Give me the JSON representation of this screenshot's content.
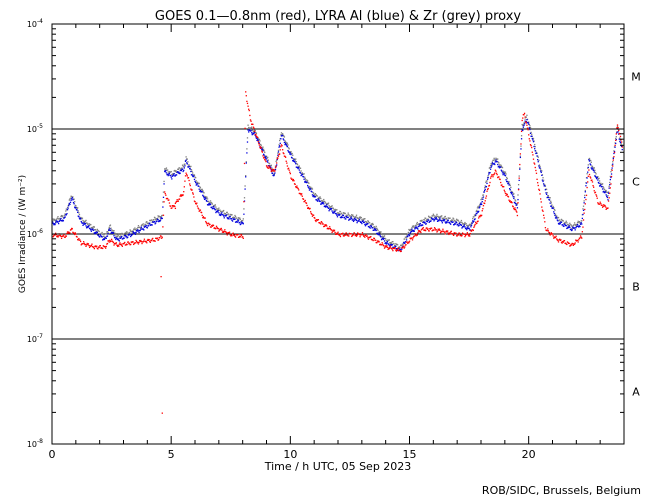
{
  "chart_data": {
    "type": "scatter",
    "title": "GOES 0.1—0.8nm (red), LYRA Al (blue) & Zr (grey) proxy",
    "xlabel": "Time / h UTC, 05 Sep 2023",
    "ylabel": "GOES Irradiance / (W m⁻²)",
    "xlim": [
      0,
      24
    ],
    "ylim_log10": [
      -8,
      -4
    ],
    "x_ticks": [
      0,
      5,
      10,
      15,
      20
    ],
    "x_tick_labels": [
      "0",
      "5",
      "10",
      "15",
      "20"
    ],
    "y_ticks_log10": [
      -8,
      -7,
      -6,
      -5,
      -4
    ],
    "y_tick_bases": [
      "10",
      "10",
      "10",
      "10",
      "10"
    ],
    "y_tick_exponents": [
      "-8",
      "-7",
      "-6",
      "-5",
      "-4"
    ],
    "class_lines_log10": [
      -7,
      -6,
      -5
    ],
    "class_labels": [
      {
        "label": "A",
        "log10": -7.5
      },
      {
        "label": "B",
        "log10": -6.5
      },
      {
        "label": "C",
        "log10": -5.5
      },
      {
        "label": "M",
        "log10": -4.5
      }
    ],
    "credit": "ROB/SIDC, Brussels, Belgium",
    "series": [
      {
        "name": "LYRA Zr proxy",
        "color": "#808080",
        "offset": 0.03,
        "anchors": [
          [
            0.0,
            -5.9
          ],
          [
            0.5,
            -5.85
          ],
          [
            0.8,
            -5.65
          ],
          [
            1.2,
            -5.88
          ],
          [
            1.8,
            -5.98
          ],
          [
            2.2,
            -6.05
          ],
          [
            2.4,
            -5.95
          ],
          [
            2.7,
            -6.05
          ],
          [
            3.3,
            -6.0
          ],
          [
            4.3,
            -5.88
          ],
          [
            4.6,
            -5.85
          ],
          [
            4.7,
            -5.4
          ],
          [
            5.0,
            -5.45
          ],
          [
            5.5,
            -5.38
          ],
          [
            5.6,
            -5.3
          ],
          [
            6.0,
            -5.5
          ],
          [
            6.5,
            -5.7
          ],
          [
            7.0,
            -5.8
          ],
          [
            7.5,
            -5.85
          ],
          [
            8.0,
            -5.9
          ],
          [
            8.2,
            -5.0
          ],
          [
            8.5,
            -5.05
          ],
          [
            9.0,
            -5.3
          ],
          [
            9.3,
            -5.45
          ],
          [
            9.6,
            -5.05
          ],
          [
            10.0,
            -5.25
          ],
          [
            11.0,
            -5.65
          ],
          [
            12.0,
            -5.82
          ],
          [
            13.0,
            -5.88
          ],
          [
            13.5,
            -5.95
          ],
          [
            14.0,
            -6.08
          ],
          [
            14.6,
            -6.15
          ],
          [
            15.0,
            -5.98
          ],
          [
            15.5,
            -5.9
          ],
          [
            16.0,
            -5.85
          ],
          [
            17.0,
            -5.9
          ],
          [
            17.5,
            -5.95
          ],
          [
            18.0,
            -5.7
          ],
          [
            18.4,
            -5.35
          ],
          [
            18.6,
            -5.3
          ],
          [
            19.0,
            -5.45
          ],
          [
            19.5,
            -5.75
          ],
          [
            19.7,
            -5.0
          ],
          [
            19.9,
            -4.9
          ],
          [
            20.2,
            -5.15
          ],
          [
            20.7,
            -5.6
          ],
          [
            21.2,
            -5.88
          ],
          [
            21.8,
            -5.95
          ],
          [
            22.2,
            -5.9
          ],
          [
            22.5,
            -5.3
          ],
          [
            22.9,
            -5.5
          ],
          [
            23.3,
            -5.65
          ],
          [
            23.7,
            -5.0
          ],
          [
            23.9,
            -5.2
          ]
        ]
      },
      {
        "name": "LYRA Al proxy",
        "color": "#0000dd",
        "offset": 0.0,
        "anchors": [
          [
            0.0,
            -5.9
          ],
          [
            0.5,
            -5.85
          ],
          [
            0.8,
            -5.65
          ],
          [
            1.2,
            -5.88
          ],
          [
            1.8,
            -5.98
          ],
          [
            2.2,
            -6.05
          ],
          [
            2.4,
            -5.95
          ],
          [
            2.7,
            -6.05
          ],
          [
            3.3,
            -6.0
          ],
          [
            4.3,
            -5.88
          ],
          [
            4.6,
            -5.85
          ],
          [
            4.7,
            -5.4
          ],
          [
            5.0,
            -5.45
          ],
          [
            5.5,
            -5.38
          ],
          [
            5.6,
            -5.3
          ],
          [
            6.0,
            -5.5
          ],
          [
            6.5,
            -5.7
          ],
          [
            7.0,
            -5.8
          ],
          [
            7.5,
            -5.85
          ],
          [
            8.0,
            -5.9
          ],
          [
            8.2,
            -5.0
          ],
          [
            8.5,
            -5.05
          ],
          [
            9.0,
            -5.3
          ],
          [
            9.3,
            -5.45
          ],
          [
            9.6,
            -5.05
          ],
          [
            10.0,
            -5.25
          ],
          [
            11.0,
            -5.65
          ],
          [
            12.0,
            -5.82
          ],
          [
            13.0,
            -5.88
          ],
          [
            13.5,
            -5.95
          ],
          [
            14.0,
            -6.08
          ],
          [
            14.6,
            -6.15
          ],
          [
            15.0,
            -5.98
          ],
          [
            15.5,
            -5.9
          ],
          [
            16.0,
            -5.85
          ],
          [
            17.0,
            -5.9
          ],
          [
            17.5,
            -5.95
          ],
          [
            18.0,
            -5.7
          ],
          [
            18.4,
            -5.35
          ],
          [
            18.6,
            -5.3
          ],
          [
            19.0,
            -5.45
          ],
          [
            19.5,
            -5.75
          ],
          [
            19.7,
            -5.0
          ],
          [
            19.9,
            -4.9
          ],
          [
            20.2,
            -5.15
          ],
          [
            20.7,
            -5.6
          ],
          [
            21.2,
            -5.88
          ],
          [
            21.8,
            -5.95
          ],
          [
            22.2,
            -5.9
          ],
          [
            22.5,
            -5.3
          ],
          [
            22.9,
            -5.5
          ],
          [
            23.3,
            -5.65
          ],
          [
            23.7,
            -5.0
          ],
          [
            23.9,
            -5.2
          ]
        ]
      },
      {
        "name": "GOES 0.1-0.8nm",
        "color": "#ff0000",
        "offset": 0.0,
        "anchors": [
          [
            0.0,
            -6.0
          ],
          [
            0.5,
            -6.02
          ],
          [
            0.8,
            -5.95
          ],
          [
            1.2,
            -6.08
          ],
          [
            1.8,
            -6.12
          ],
          [
            2.2,
            -6.12
          ],
          [
            2.4,
            -6.05
          ],
          [
            2.7,
            -6.1
          ],
          [
            3.3,
            -6.08
          ],
          [
            4.3,
            -6.05
          ],
          [
            4.6,
            -6.02
          ],
          [
            4.7,
            -5.6
          ],
          [
            5.0,
            -5.75
          ],
          [
            5.5,
            -5.6
          ],
          [
            5.6,
            -5.4
          ],
          [
            6.0,
            -5.7
          ],
          [
            6.5,
            -5.9
          ],
          [
            7.0,
            -5.95
          ],
          [
            7.5,
            -6.0
          ],
          [
            8.0,
            -6.02
          ],
          [
            8.1,
            -4.65
          ],
          [
            8.3,
            -4.9
          ],
          [
            9.0,
            -5.35
          ],
          [
            9.3,
            -5.4
          ],
          [
            9.6,
            -5.15
          ],
          [
            10.0,
            -5.45
          ],
          [
            11.0,
            -5.85
          ],
          [
            12.0,
            -6.0
          ],
          [
            13.0,
            -6.0
          ],
          [
            13.5,
            -6.05
          ],
          [
            14.0,
            -6.12
          ],
          [
            14.6,
            -6.15
          ],
          [
            15.0,
            -6.05
          ],
          [
            15.5,
            -5.95
          ],
          [
            16.0,
            -5.95
          ],
          [
            17.0,
            -6.0
          ],
          [
            17.5,
            -6.0
          ],
          [
            18.0,
            -5.8
          ],
          [
            18.4,
            -5.45
          ],
          [
            18.6,
            -5.4
          ],
          [
            19.0,
            -5.6
          ],
          [
            19.5,
            -5.8
          ],
          [
            19.7,
            -4.9
          ],
          [
            19.8,
            -4.85
          ],
          [
            20.2,
            -5.3
          ],
          [
            20.7,
            -5.95
          ],
          [
            21.2,
            -6.05
          ],
          [
            21.8,
            -6.1
          ],
          [
            22.2,
            -6.02
          ],
          [
            22.5,
            -5.4
          ],
          [
            22.9,
            -5.7
          ],
          [
            23.3,
            -5.75
          ],
          [
            23.7,
            -4.95
          ],
          [
            23.9,
            -5.15
          ]
        ],
        "outliers": [
          [
            4.55,
            -6.4
          ],
          [
            4.6,
            -7.7
          ],
          [
            5.15,
            -5.75
          ]
        ]
      }
    ]
  }
}
